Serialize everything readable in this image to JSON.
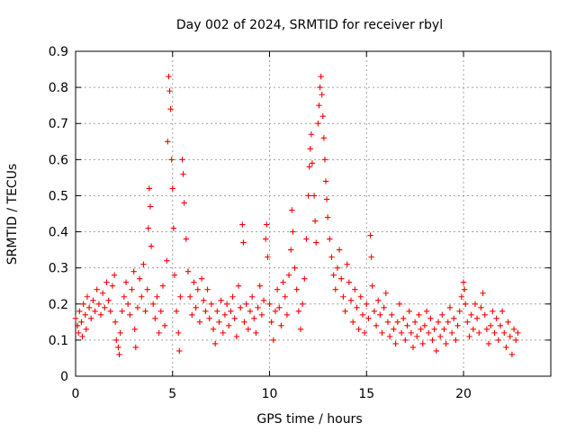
{
  "chart_data": {
    "type": "scatter",
    "title": "Day 002 of 2024, SRMTID for receiver rbyl",
    "xlabel": "GPS time / hours",
    "ylabel": "SRMTID / TECUs",
    "xlim": [
      0,
      24.5
    ],
    "ylim": [
      0,
      0.9
    ],
    "xticks": [
      0,
      5,
      10,
      15,
      20
    ],
    "xtick_labels": [
      "0",
      "5",
      "10",
      "15",
      "20"
    ],
    "yticks": [
      0,
      0.1,
      0.2,
      0.3,
      0.4,
      0.5,
      0.6,
      0.7,
      0.8,
      0.9
    ],
    "ytick_labels": [
      "0",
      "0.1",
      "0.2",
      "0.3",
      "0.4",
      "0.5",
      "0.6",
      "0.7",
      "0.8",
      "0.9"
    ],
    "grid": true,
    "marker": "+",
    "color": "#ff0000",
    "series": [
      {
        "name": "SRMTID",
        "points": [
          [
            0.0,
            0.16
          ],
          [
            0.1,
            0.14
          ],
          [
            0.15,
            0.12
          ],
          [
            0.2,
            0.18
          ],
          [
            0.3,
            0.15
          ],
          [
            0.35,
            0.11
          ],
          [
            0.4,
            0.2
          ],
          [
            0.5,
            0.17
          ],
          [
            0.55,
            0.13
          ],
          [
            0.6,
            0.22
          ],
          [
            0.7,
            0.19
          ],
          [
            0.8,
            0.16
          ],
          [
            0.9,
            0.21
          ],
          [
            1.0,
            0.18
          ],
          [
            1.1,
            0.24
          ],
          [
            1.2,
            0.2
          ],
          [
            1.3,
            0.17
          ],
          [
            1.4,
            0.23
          ],
          [
            1.5,
            0.19
          ],
          [
            1.6,
            0.26
          ],
          [
            1.7,
            0.21
          ],
          [
            1.8,
            0.18
          ],
          [
            1.9,
            0.25
          ],
          [
            2.0,
            0.28
          ],
          [
            2.05,
            0.15
          ],
          [
            2.1,
            0.1
          ],
          [
            2.2,
            0.08
          ],
          [
            2.25,
            0.06
          ],
          [
            2.3,
            0.12
          ],
          [
            2.4,
            0.18
          ],
          [
            2.5,
            0.22
          ],
          [
            2.6,
            0.26
          ],
          [
            2.7,
            0.2
          ],
          [
            2.8,
            0.17
          ],
          [
            2.9,
            0.24
          ],
          [
            3.0,
            0.29
          ],
          [
            3.05,
            0.13
          ],
          [
            3.1,
            0.08
          ],
          [
            3.2,
            0.19
          ],
          [
            3.3,
            0.27
          ],
          [
            3.4,
            0.22
          ],
          [
            3.5,
            0.31
          ],
          [
            3.6,
            0.18
          ],
          [
            3.7,
            0.24
          ],
          [
            3.75,
            0.41
          ],
          [
            3.8,
            0.52
          ],
          [
            3.85,
            0.47
          ],
          [
            3.9,
            0.36
          ],
          [
            4.0,
            0.2
          ],
          [
            4.1,
            0.16
          ],
          [
            4.2,
            0.22
          ],
          [
            4.3,
            0.12
          ],
          [
            4.4,
            0.18
          ],
          [
            4.5,
            0.25
          ],
          [
            4.6,
            0.14
          ],
          [
            4.7,
            0.32
          ],
          [
            4.75,
            0.65
          ],
          [
            4.8,
            0.83
          ],
          [
            4.85,
            0.79
          ],
          [
            4.9,
            0.74
          ],
          [
            4.95,
            0.6
          ],
          [
            5.0,
            0.52
          ],
          [
            5.05,
            0.41
          ],
          [
            5.1,
            0.28
          ],
          [
            5.2,
            0.18
          ],
          [
            5.3,
            0.12
          ],
          [
            5.35,
            0.07
          ],
          [
            5.4,
            0.22
          ],
          [
            5.5,
            0.6
          ],
          [
            5.55,
            0.56
          ],
          [
            5.6,
            0.48
          ],
          [
            5.7,
            0.38
          ],
          [
            5.8,
            0.29
          ],
          [
            5.9,
            0.22
          ],
          [
            6.0,
            0.17
          ],
          [
            6.1,
            0.26
          ],
          [
            6.2,
            0.19
          ],
          [
            6.3,
            0.24
          ],
          [
            6.4,
            0.15
          ],
          [
            6.5,
            0.27
          ],
          [
            6.6,
            0.21
          ],
          [
            6.7,
            0.18
          ],
          [
            6.8,
            0.24
          ],
          [
            6.9,
            0.16
          ],
          [
            7.0,
            0.2
          ],
          [
            7.1,
            0.13
          ],
          [
            7.2,
            0.09
          ],
          [
            7.3,
            0.18
          ],
          [
            7.4,
            0.15
          ],
          [
            7.5,
            0.21
          ],
          [
            7.6,
            0.12
          ],
          [
            7.7,
            0.17
          ],
          [
            7.8,
            0.2
          ],
          [
            7.9,
            0.14
          ],
          [
            8.0,
            0.18
          ],
          [
            8.1,
            0.22
          ],
          [
            8.2,
            0.16
          ],
          [
            8.3,
            0.11
          ],
          [
            8.4,
            0.25
          ],
          [
            8.5,
            0.19
          ],
          [
            8.6,
            0.42
          ],
          [
            8.65,
            0.37
          ],
          [
            8.7,
            0.15
          ],
          [
            8.8,
            0.2
          ],
          [
            8.9,
            0.13
          ],
          [
            9.0,
            0.18
          ],
          [
            9.1,
            0.22
          ],
          [
            9.2,
            0.16
          ],
          [
            9.3,
            0.12
          ],
          [
            9.4,
            0.19
          ],
          [
            9.5,
            0.25
          ],
          [
            9.6,
            0.17
          ],
          [
            9.7,
            0.21
          ],
          [
            9.8,
            0.38
          ],
          [
            9.85,
            0.42
          ],
          [
            9.9,
            0.33
          ],
          [
            10.0,
            0.2
          ],
          [
            10.1,
            0.15
          ],
          [
            10.2,
            0.1
          ],
          [
            10.3,
            0.18
          ],
          [
            10.4,
            0.24
          ],
          [
            10.5,
            0.19
          ],
          [
            10.6,
            0.14
          ],
          [
            10.7,
            0.26
          ],
          [
            10.8,
            0.22
          ],
          [
            10.9,
            0.17
          ],
          [
            11.0,
            0.28
          ],
          [
            11.1,
            0.35
          ],
          [
            11.15,
            0.46
          ],
          [
            11.2,
            0.4
          ],
          [
            11.3,
            0.3
          ],
          [
            11.4,
            0.24
          ],
          [
            11.5,
            0.18
          ],
          [
            11.6,
            0.13
          ],
          [
            11.7,
            0.2
          ],
          [
            11.8,
            0.27
          ],
          [
            11.9,
            0.38
          ],
          [
            12.0,
            0.5
          ],
          [
            12.05,
            0.58
          ],
          [
            12.1,
            0.63
          ],
          [
            12.15,
            0.67
          ],
          [
            12.2,
            0.59
          ],
          [
            12.3,
            0.5
          ],
          [
            12.35,
            0.43
          ],
          [
            12.4,
            0.37
          ],
          [
            12.5,
            0.7
          ],
          [
            12.55,
            0.75
          ],
          [
            12.6,
            0.8
          ],
          [
            12.65,
            0.83
          ],
          [
            12.7,
            0.78
          ],
          [
            12.75,
            0.72
          ],
          [
            12.8,
            0.66
          ],
          [
            12.85,
            0.6
          ],
          [
            12.9,
            0.54
          ],
          [
            12.95,
            0.49
          ],
          [
            13.0,
            0.44
          ],
          [
            13.1,
            0.38
          ],
          [
            13.2,
            0.33
          ],
          [
            13.3,
            0.28
          ],
          [
            13.4,
            0.24
          ],
          [
            13.5,
            0.3
          ],
          [
            13.6,
            0.35
          ],
          [
            13.7,
            0.27
          ],
          [
            13.8,
            0.22
          ],
          [
            13.9,
            0.18
          ],
          [
            14.0,
            0.31
          ],
          [
            14.1,
            0.26
          ],
          [
            14.2,
            0.21
          ],
          [
            14.3,
            0.15
          ],
          [
            14.4,
            0.24
          ],
          [
            14.5,
            0.19
          ],
          [
            14.6,
            0.13
          ],
          [
            14.7,
            0.22
          ],
          [
            14.8,
            0.17
          ],
          [
            14.9,
            0.12
          ],
          [
            15.0,
            0.2
          ],
          [
            15.1,
            0.16
          ],
          [
            15.2,
            0.39
          ],
          [
            15.25,
            0.33
          ],
          [
            15.3,
            0.25
          ],
          [
            15.4,
            0.18
          ],
          [
            15.5,
            0.14
          ],
          [
            15.6,
            0.21
          ],
          [
            15.7,
            0.17
          ],
          [
            15.8,
            0.12
          ],
          [
            15.9,
            0.19
          ],
          [
            16.0,
            0.23
          ],
          [
            16.1,
            0.15
          ],
          [
            16.2,
            0.11
          ],
          [
            16.3,
            0.17
          ],
          [
            16.4,
            0.13
          ],
          [
            16.5,
            0.09
          ],
          [
            16.6,
            0.15
          ],
          [
            16.7,
            0.2
          ],
          [
            16.8,
            0.12
          ],
          [
            16.9,
            0.16
          ],
          [
            17.0,
            0.1
          ],
          [
            17.1,
            0.14
          ],
          [
            17.2,
            0.18
          ],
          [
            17.3,
            0.12
          ],
          [
            17.4,
            0.08
          ],
          [
            17.5,
            0.15
          ],
          [
            17.6,
            0.11
          ],
          [
            17.7,
            0.17
          ],
          [
            17.8,
            0.13
          ],
          [
            17.9,
            0.09
          ],
          [
            18.0,
            0.14
          ],
          [
            18.1,
            0.18
          ],
          [
            18.2,
            0.12
          ],
          [
            18.3,
            0.16
          ],
          [
            18.4,
            0.1
          ],
          [
            18.5,
            0.13
          ],
          [
            18.6,
            0.07
          ],
          [
            18.7,
            0.15
          ],
          [
            18.8,
            0.11
          ],
          [
            18.9,
            0.17
          ],
          [
            19.0,
            0.13
          ],
          [
            19.1,
            0.09
          ],
          [
            19.2,
            0.15
          ],
          [
            19.3,
            0.19
          ],
          [
            19.4,
            0.12
          ],
          [
            19.5,
            0.16
          ],
          [
            19.6,
            0.1
          ],
          [
            19.7,
            0.14
          ],
          [
            19.8,
            0.18
          ],
          [
            19.9,
            0.22
          ],
          [
            20.0,
            0.26
          ],
          [
            20.05,
            0.24
          ],
          [
            20.1,
            0.2
          ],
          [
            20.2,
            0.15
          ],
          [
            20.3,
            0.11
          ],
          [
            20.4,
            0.17
          ],
          [
            20.5,
            0.13
          ],
          [
            20.6,
            0.2
          ],
          [
            20.7,
            0.16
          ],
          [
            20.8,
            0.12
          ],
          [
            20.9,
            0.19
          ],
          [
            21.0,
            0.23
          ],
          [
            21.1,
            0.17
          ],
          [
            21.2,
            0.13
          ],
          [
            21.3,
            0.09
          ],
          [
            21.4,
            0.14
          ],
          [
            21.5,
            0.18
          ],
          [
            21.6,
            0.12
          ],
          [
            21.7,
            0.16
          ],
          [
            21.8,
            0.1
          ],
          [
            21.9,
            0.14
          ],
          [
            22.0,
            0.18
          ],
          [
            22.1,
            0.12
          ],
          [
            22.2,
            0.08
          ],
          [
            22.3,
            0.15
          ],
          [
            22.4,
            0.11
          ],
          [
            22.5,
            0.06
          ],
          [
            22.6,
            0.13
          ],
          [
            22.7,
            0.1
          ],
          [
            22.8,
            0.12
          ]
        ]
      }
    ]
  }
}
